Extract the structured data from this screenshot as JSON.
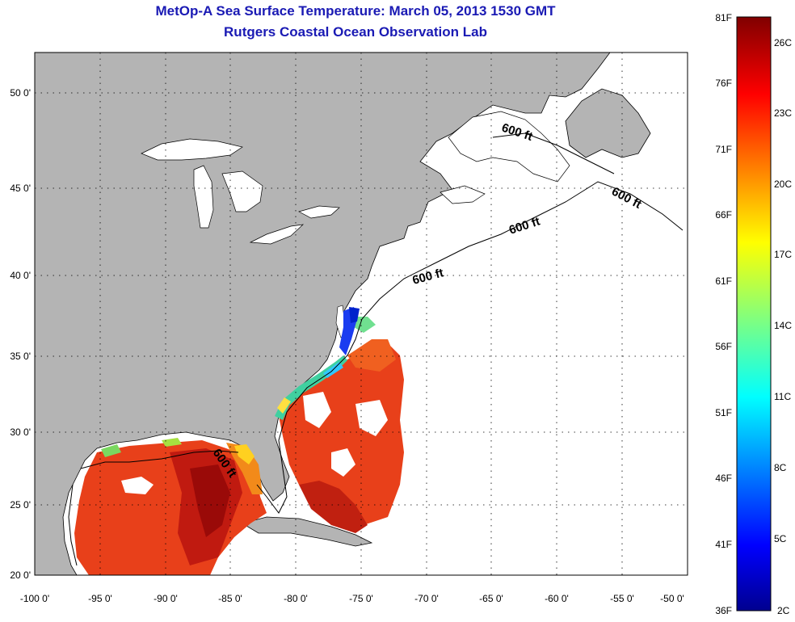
{
  "header": {
    "title": "MetOp-A Sea Surface Temperature:  March 05, 2013 1530 GMT",
    "subtitle": "Rutgers Coastal Ocean Observation Lab"
  },
  "map": {
    "lon_ticks": [
      "-100 0'",
      "-95 0'",
      "-90 0'",
      "-85 0'",
      "-80 0'",
      "-75 0'",
      "-70 0'",
      "-65 0'",
      "-60 0'",
      "-55 0'",
      "-50 0'"
    ],
    "lat_ticks": [
      "20 0'",
      "25 0'",
      "30 0'",
      "35 0'",
      "40 0'",
      "45 0'",
      "50 0'"
    ],
    "isobath_labels": [
      "600 ft",
      "600 ft",
      "600 ft",
      "600 ft",
      "600 ft"
    ],
    "land_color": "#b4b4b4",
    "ocean_color": "#ffffff"
  },
  "colorbar": {
    "f_labels": [
      "81F",
      "76F",
      "71F",
      "66F",
      "61F",
      "56F",
      "51F",
      "46F",
      "41F",
      "36F"
    ],
    "c_labels": [
      "26C",
      "23C",
      "20C",
      "17C",
      "14C",
      "11C",
      "8C",
      "5C",
      "2C"
    ],
    "colormap": "jet"
  }
}
